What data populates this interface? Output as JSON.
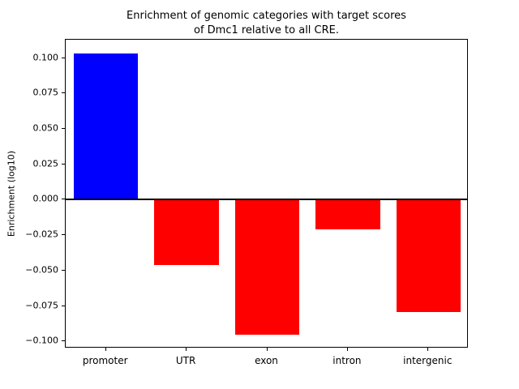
{
  "chart_data": {
    "type": "bar",
    "title": "Enrichment of genomic categories with target scores\nof Dmc1 relative to all CRE.",
    "xlabel": "",
    "ylabel": "Enrichment (log10)",
    "categories": [
      "promoter",
      "UTR",
      "exon",
      "intron",
      "intergenic"
    ],
    "values": [
      0.103,
      -0.046,
      -0.095,
      -0.021,
      -0.079
    ],
    "bar_colors": [
      "#0000ff",
      "#ff0000",
      "#ff0000",
      "#ff0000",
      "#ff0000"
    ],
    "positive_color": "#0000ff",
    "negative_color": "#ff0000",
    "ylim": [
      -0.105,
      0.113
    ],
    "yticks": [
      0.1,
      0.075,
      0.05,
      0.025,
      0.0,
      -0.025,
      -0.05,
      -0.075,
      -0.1
    ],
    "ytick_labels": [
      "0.100",
      "0.075",
      "0.050",
      "0.025",
      "0.000",
      "−0.025",
      "−0.050",
      "−0.075",
      "−0.100"
    ],
    "grid": false,
    "legend": null,
    "zero_line_y": 0,
    "bar_width_fraction": 0.8
  }
}
